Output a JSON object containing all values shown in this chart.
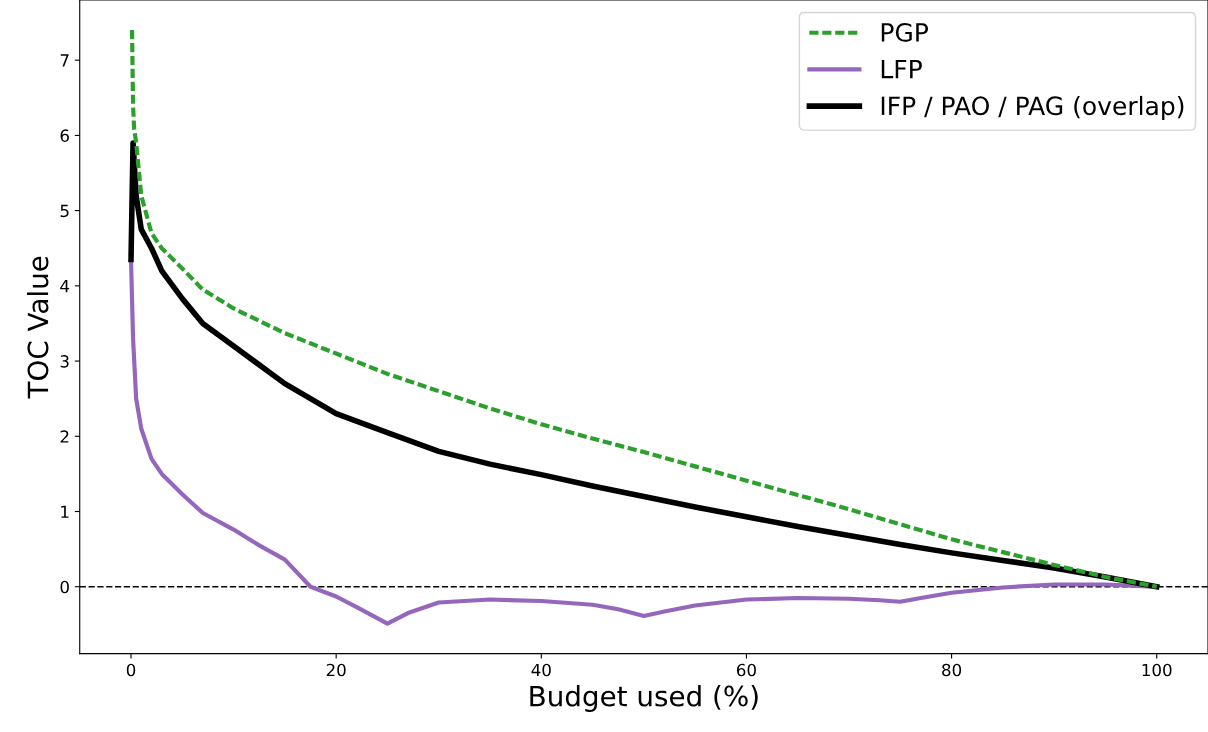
{
  "chart_data": {
    "type": "line",
    "xlabel": "Budget used (%)",
    "ylabel": "TOC Value",
    "xlim": [
      -5,
      105
    ],
    "ylim": [
      -0.89,
      7.8
    ],
    "xticks": [
      0,
      20,
      40,
      60,
      80,
      100
    ],
    "yticks": [
      0,
      1,
      2,
      3,
      4,
      5,
      6,
      7
    ],
    "grid": false,
    "legend": "top right",
    "marker": "none",
    "ref_lines": [
      {
        "axis": "y",
        "value": 0,
        "color": "#000000",
        "line_style": "dashed"
      }
    ],
    "series": [
      {
        "name": "PGP",
        "color": "#2ca02c",
        "line_style": "dashed",
        "x": [
          0.1,
          0.2,
          0.3,
          0.5,
          1,
          2,
          3,
          5,
          7,
          10,
          15,
          20,
          25,
          30,
          35,
          40,
          45,
          50,
          55,
          60,
          65,
          70,
          75,
          80,
          85,
          90,
          95,
          100
        ],
        "values": [
          7.4,
          6.4,
          6.1,
          5.9,
          5.2,
          4.7,
          4.5,
          4.23,
          3.95,
          3.7,
          3.37,
          3.1,
          2.83,
          2.6,
          2.37,
          2.16,
          1.97,
          1.79,
          1.6,
          1.41,
          1.22,
          1.03,
          0.83,
          0.63,
          0.46,
          0.29,
          0.13,
          0
        ]
      },
      {
        "name": "LFP",
        "color": "#9467bd",
        "line_style": "solid",
        "x": [
          0,
          0.2,
          0.5,
          1,
          2,
          3,
          5,
          7,
          10,
          12.5,
          15,
          17.5,
          20,
          22,
          25,
          27,
          30,
          35,
          40,
          45,
          47.5,
          50,
          52,
          55,
          60,
          65,
          70,
          73,
          75,
          77,
          80,
          85,
          90,
          95,
          100
        ],
        "values": [
          4.35,
          3.3,
          2.5,
          2.1,
          1.7,
          1.5,
          1.23,
          0.98,
          0.76,
          0.55,
          0.36,
          0,
          -0.13,
          -0.27,
          -0.49,
          -0.35,
          -0.21,
          -0.17,
          -0.19,
          -0.24,
          -0.3,
          -0.39,
          -0.33,
          -0.25,
          -0.17,
          -0.15,
          -0.16,
          -0.18,
          -0.2,
          -0.15,
          -0.08,
          -0.01,
          0.03,
          0.03,
          0
        ]
      },
      {
        "name": "IFP / PAO / PAG (overlap)",
        "color": "#000000",
        "line_style": "solid",
        "x": [
          0,
          0.2,
          0.5,
          1,
          2,
          3,
          5,
          7,
          10,
          15,
          20,
          25,
          30,
          35,
          40,
          45,
          50,
          55,
          60,
          65,
          70,
          75,
          80,
          85,
          90,
          95,
          100
        ],
        "values": [
          4.35,
          5.9,
          5.2,
          4.75,
          4.5,
          4.2,
          3.83,
          3.5,
          3.2,
          2.7,
          2.3,
          2.05,
          1.8,
          1.63,
          1.49,
          1.34,
          1.2,
          1.06,
          0.93,
          0.8,
          0.68,
          0.56,
          0.45,
          0.35,
          0.25,
          0.13,
          0
        ]
      }
    ]
  }
}
